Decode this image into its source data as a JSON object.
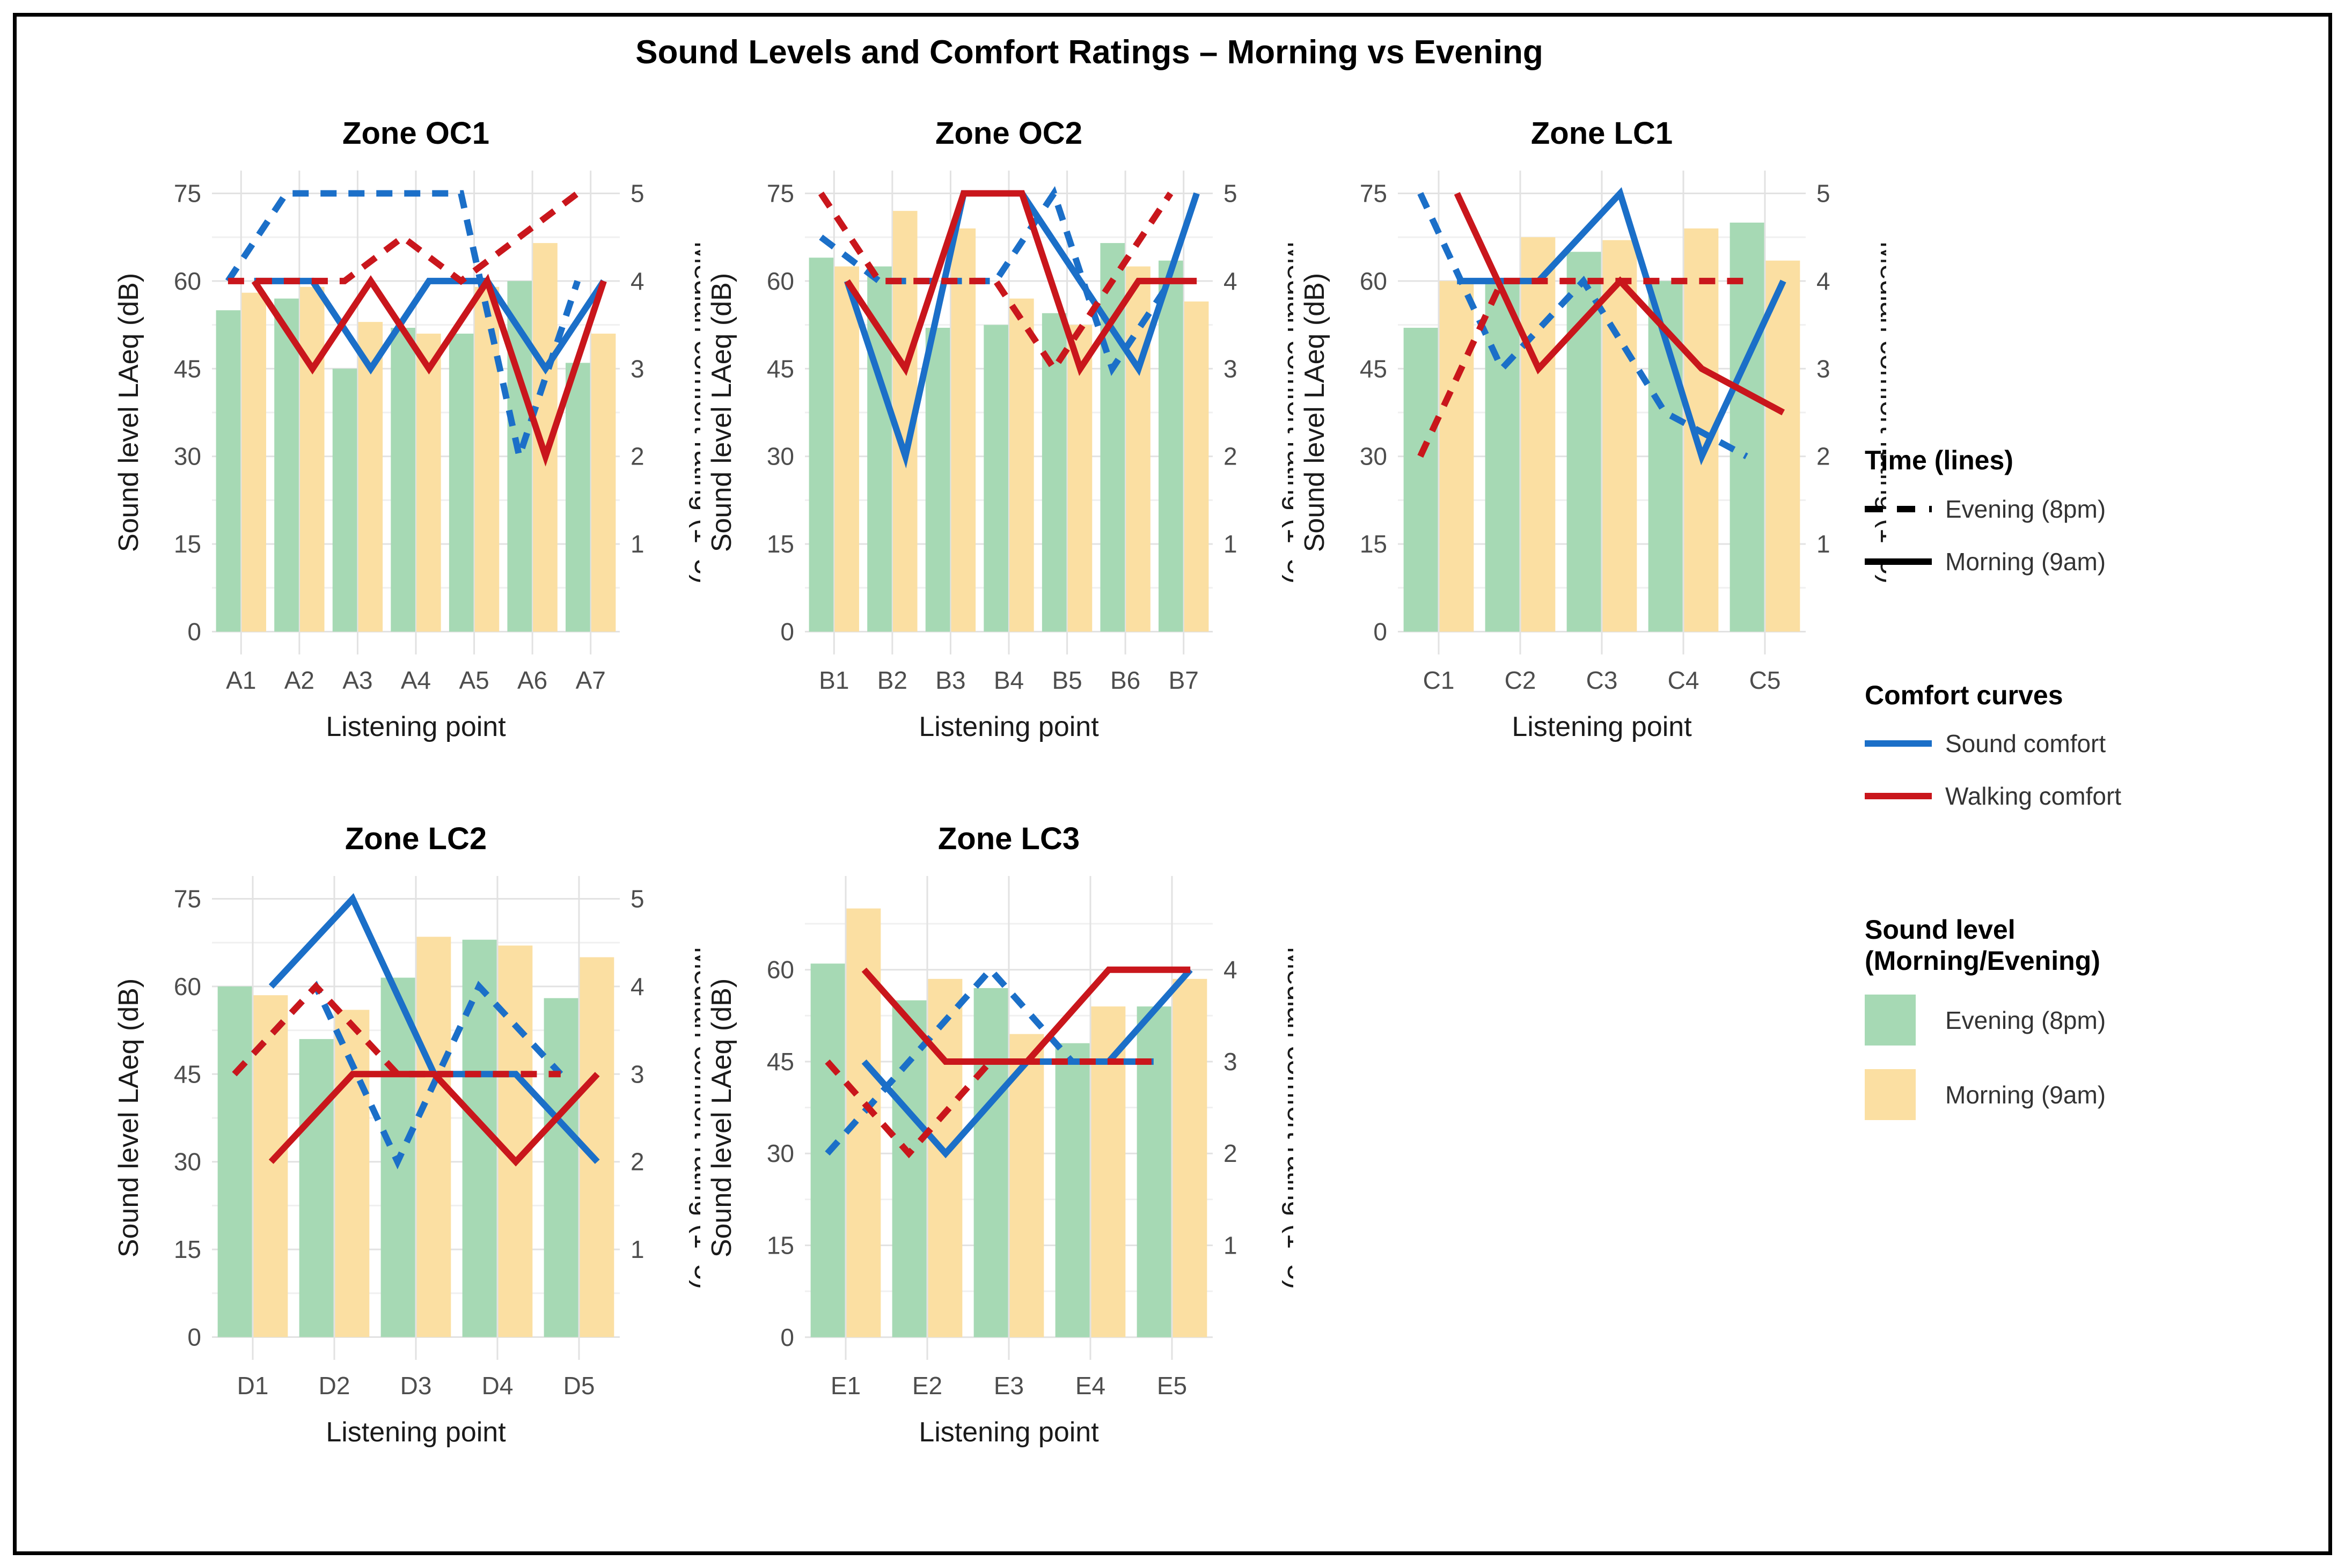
{
  "title": "Sound Levels and Comfort Ratings – Morning vs Evening",
  "colors": {
    "bar_evening": "#A6D9B4",
    "bar_morning": "#FBDFA2",
    "sound_comfort": "#1B6FC8",
    "walking_comfort": "#C9161C",
    "grid_major": "#E2E2E2",
    "grid_minor": "#F0F0F0",
    "tick_text": "#4D4D4D",
    "axis_title_text": "#1A1A1A",
    "panel_title_text": "#000000",
    "legend_line_black": "#000000"
  },
  "legend": {
    "time_title": "Time (lines)",
    "time_items": [
      {
        "label": "Evening (8pm)",
        "style": "dashed"
      },
      {
        "label": "Morning (9am)",
        "style": "solid"
      }
    ],
    "curves_title": "Comfort curves",
    "curve_items": [
      {
        "label": "Sound comfort",
        "color_key": "sound_comfort"
      },
      {
        "label": "Walking comfort",
        "color_key": "walking_comfort"
      }
    ],
    "fill_title_line1": "Sound level",
    "fill_title_line2": "(Morning/Evening)",
    "fill_items": [
      {
        "label": "Evening (8pm)",
        "color_key": "bar_evening"
      },
      {
        "label": "Morning (9am)",
        "color_key": "bar_morning"
      }
    ]
  },
  "chart_data": [
    {
      "type": "bar+line",
      "zone": "Zone OC1",
      "xlabel": "Listening point",
      "ylabel_left": "Sound level LAeq (dB)",
      "ylabel_right": "Median comfort rating (1–5)",
      "categories": [
        "A1",
        "A2",
        "A3",
        "A4",
        "A5",
        "A6",
        "A7"
      ],
      "y_left_ticks": [
        0,
        15,
        30,
        45,
        60,
        75
      ],
      "y_right_ticks": [
        1,
        2,
        3,
        4,
        5
      ],
      "y_domain": [
        -3.9,
        78.9
      ],
      "bars_db": {
        "evening": [
          55,
          57,
          45,
          52,
          51,
          60,
          46
        ],
        "morning": [
          58,
          59,
          53,
          51,
          59,
          66.5,
          51
        ]
      },
      "comfort_ratings": {
        "sound_evening": [
          4,
          5,
          5,
          5,
          5,
          2,
          4
        ],
        "sound_morning": [
          4,
          4,
          3,
          4,
          4,
          3,
          4
        ],
        "walking_evening": [
          4,
          4,
          4,
          4.5,
          4,
          4.5,
          5
        ],
        "walking_morning": [
          4,
          3,
          4,
          3,
          4,
          2,
          4
        ]
      }
    },
    {
      "type": "bar+line",
      "zone": "Zone OC2",
      "xlabel": "Listening point",
      "ylabel_left": "Sound level LAeq (dB)",
      "ylabel_right": "Median comfort rating (1–5)",
      "categories": [
        "B1",
        "B2",
        "B3",
        "B4",
        "B5",
        "B6",
        "B7"
      ],
      "y_left_ticks": [
        0,
        15,
        30,
        45,
        60,
        75
      ],
      "y_right_ticks": [
        1,
        2,
        3,
        4,
        5
      ],
      "y_domain": [
        -3.9,
        78.9
      ],
      "bars_db": {
        "evening": [
          64,
          62.5,
          52,
          52.5,
          54.5,
          66.5,
          63.5
        ],
        "morning": [
          62.5,
          72,
          69,
          57,
          52.5,
          62.5,
          56.5
        ]
      },
      "comfort_ratings": {
        "sound_evening": [
          4.5,
          4,
          4,
          4,
          5,
          3,
          4
        ],
        "sound_morning": [
          4,
          2,
          5,
          5,
          4,
          3,
          5
        ],
        "walking_evening": [
          5,
          4,
          4,
          4,
          3,
          4,
          5
        ],
        "walking_morning": [
          4,
          3,
          5,
          5,
          3,
          4,
          4
        ]
      }
    },
    {
      "type": "bar+line",
      "zone": "Zone LC1",
      "xlabel": "Listening point",
      "ylabel_left": "Sound level LAeq (dB)",
      "ylabel_right": "Median comfort rating (1–5)",
      "categories": [
        "C1",
        "C2",
        "C3",
        "C4",
        "C5"
      ],
      "y_left_ticks": [
        0,
        15,
        30,
        45,
        60,
        75
      ],
      "y_right_ticks": [
        1,
        2,
        3,
        4,
        5
      ],
      "y_domain": [
        -3.9,
        78.9
      ],
      "bars_db": {
        "evening": [
          52,
          59.5,
          65,
          60,
          70
        ],
        "morning": [
          60,
          67.5,
          67,
          69,
          63.5
        ]
      },
      "comfort_ratings": {
        "sound_evening": [
          5,
          3,
          4,
          2.5,
          2
        ],
        "sound_morning": [
          4,
          4,
          5,
          2,
          4
        ],
        "walking_evening": [
          2,
          4,
          4,
          4,
          4
        ],
        "walking_morning": [
          5,
          3,
          4,
          3,
          2.5
        ]
      }
    },
    {
      "type": "bar+line",
      "zone": "Zone LC2",
      "xlabel": "Listening point",
      "ylabel_left": "Sound level LAeq (dB)",
      "ylabel_right": "Median comfort rating (1–5)",
      "categories": [
        "D1",
        "D2",
        "D3",
        "D4",
        "D5"
      ],
      "y_left_ticks": [
        0,
        15,
        30,
        45,
        60,
        75
      ],
      "y_right_ticks": [
        1,
        2,
        3,
        4,
        5
      ],
      "y_domain": [
        -3.9,
        78.9
      ],
      "bars_db": {
        "evening": [
          60,
          51,
          61.5,
          68,
          58
        ],
        "morning": [
          58.5,
          56,
          68.5,
          67,
          65
        ]
      },
      "comfort_ratings": {
        "sound_evening": [
          3,
          4,
          2,
          4,
          3
        ],
        "sound_morning": [
          4,
          5,
          3,
          3,
          2
        ],
        "walking_evening": [
          3,
          4,
          3,
          3,
          3
        ],
        "walking_morning": [
          2,
          3,
          3,
          2,
          3
        ]
      }
    },
    {
      "type": "bar+line",
      "zone": "Zone LC3",
      "xlabel": "Listening point",
      "ylabel_left": "Sound level LAeq (dB)",
      "ylabel_right": "Median comfort rating (1–5)",
      "categories": [
        "E1",
        "E2",
        "E3",
        "E4",
        "E5"
      ],
      "y_left_ticks": [
        0,
        15,
        30,
        45,
        60
      ],
      "y_right_ticks": [
        1,
        2,
        3,
        4
      ],
      "y_domain": [
        -3.7,
        75.3
      ],
      "bars_db": {
        "evening": [
          61,
          55,
          57,
          48,
          54
        ],
        "morning": [
          70,
          58.5,
          49.5,
          54,
          58.5
        ]
      },
      "comfort_ratings": {
        "sound_evening": [
          2,
          3,
          4,
          3,
          3
        ],
        "sound_morning": [
          3,
          2,
          3,
          3,
          4
        ],
        "walking_evening": [
          3,
          2,
          3,
          3,
          3
        ],
        "walking_morning": [
          4,
          3,
          3,
          4,
          4
        ]
      }
    }
  ]
}
